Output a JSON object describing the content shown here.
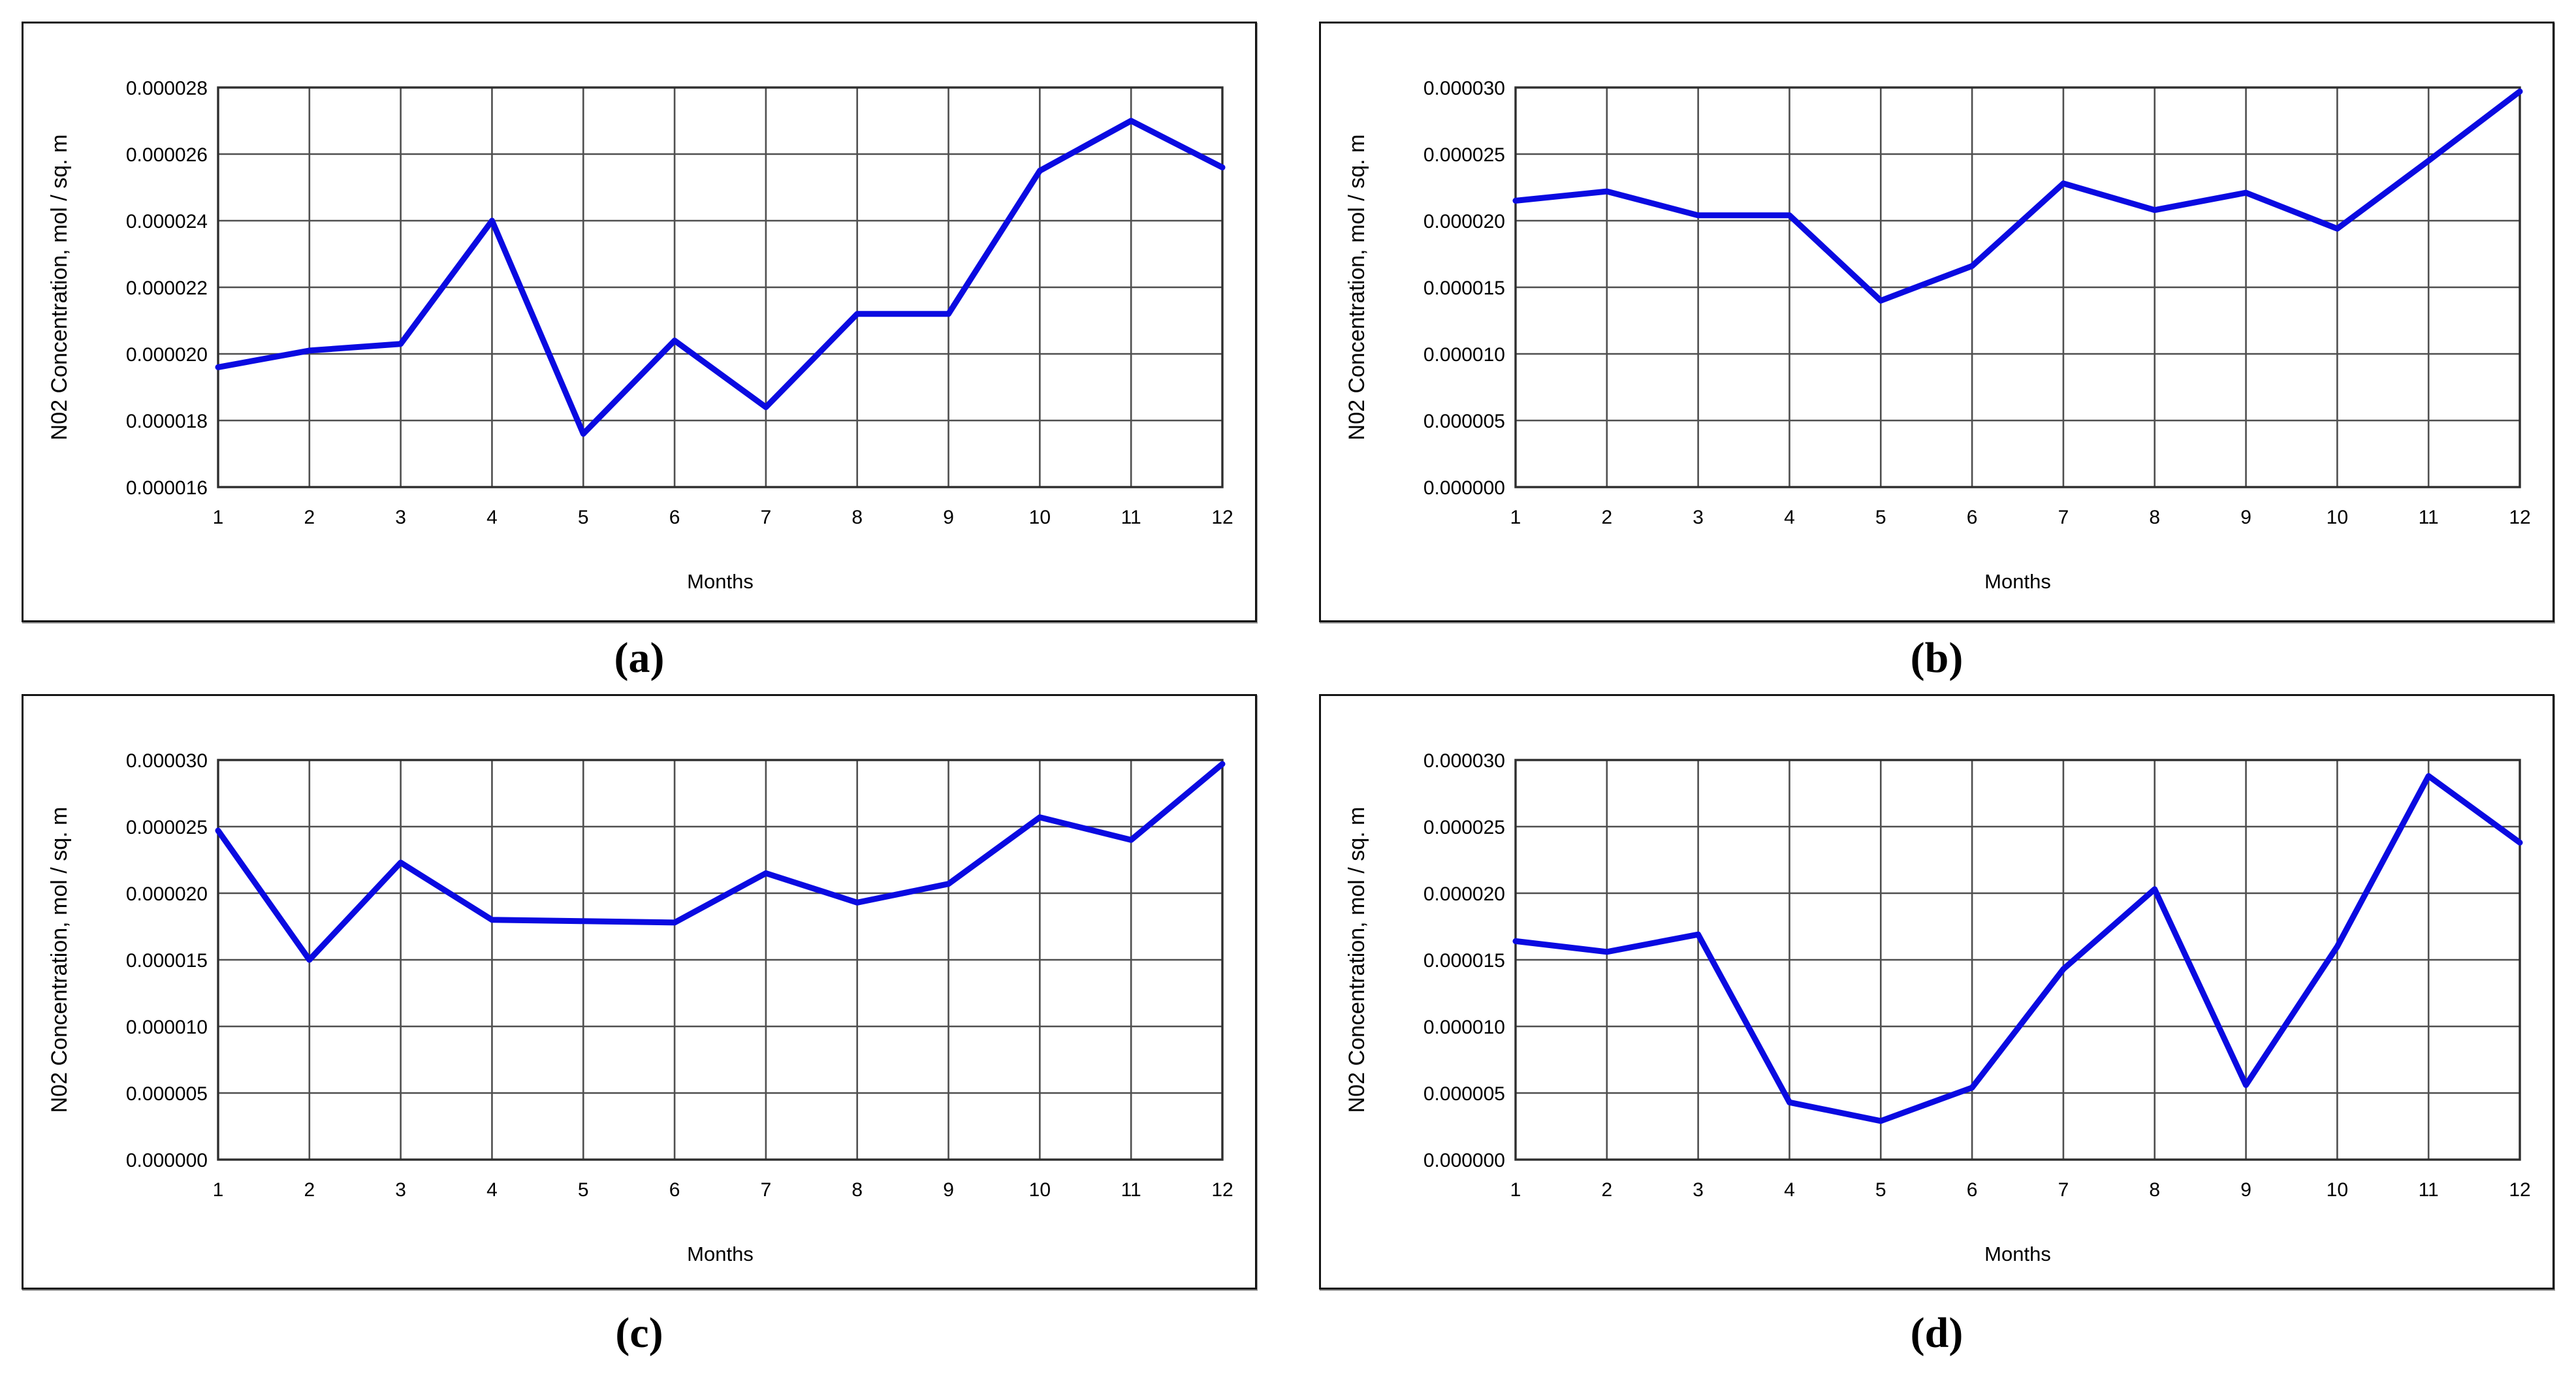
{
  "style": {
    "line_color": "#0a0ae1",
    "grid_color": "#4f4f4f",
    "plot_border_color": "#2e2e2e",
    "text_color": "#000000",
    "background": "#ffffff"
  },
  "chart_data": [
    {
      "id": "a",
      "type": "line",
      "caption": "(a)",
      "title": "",
      "ylabel": "N02 Concentration, mol / sq. m",
      "xlabel": "Months",
      "x": [
        1,
        2,
        3,
        4,
        5,
        6,
        7,
        8,
        9,
        10,
        11,
        12
      ],
      "values": [
        1.96e-05,
        2.01e-05,
        2.03e-05,
        2.4e-05,
        1.76e-05,
        2.04e-05,
        1.84e-05,
        2.12e-05,
        2.12e-05,
        2.55e-05,
        2.7e-05,
        2.56e-05
      ],
      "ylim": [
        1.6e-05,
        2.8e-05
      ],
      "ystep": 2e-06,
      "ytick_decimals": 6,
      "grid": "on",
      "legend": "none"
    },
    {
      "id": "b",
      "type": "line",
      "caption": "(b)",
      "title": "",
      "ylabel": "N02 Concentration, mol / sq. m",
      "xlabel": "Months",
      "x": [
        1,
        2,
        3,
        4,
        5,
        6,
        7,
        8,
        9,
        10,
        11,
        12
      ],
      "values": [
        2.15e-05,
        2.22e-05,
        2.04e-05,
        2.04e-05,
        1.4e-05,
        1.66e-05,
        2.28e-05,
        2.08e-05,
        2.21e-05,
        1.94e-05,
        2.45e-05,
        2.97e-05
      ],
      "ylim": [
        0.0,
        3e-05
      ],
      "ystep": 5e-06,
      "ytick_decimals": 6,
      "grid": "on",
      "legend": "none"
    },
    {
      "id": "c",
      "type": "line",
      "caption": "(c)",
      "title": "",
      "ylabel": "N02 Concentration, mol / sq. m",
      "xlabel": "Months",
      "x": [
        1,
        2,
        3,
        4,
        5,
        6,
        7,
        8,
        9,
        10,
        11,
        12
      ],
      "values": [
        2.47e-05,
        1.5e-05,
        2.23e-05,
        1.8e-05,
        1.79e-05,
        1.78e-05,
        2.15e-05,
        1.93e-05,
        2.07e-05,
        2.57e-05,
        2.4e-05,
        2.97e-05
      ],
      "ylim": [
        0.0,
        3e-05
      ],
      "ystep": 5e-06,
      "ytick_decimals": 6,
      "grid": "on",
      "legend": "none"
    },
    {
      "id": "d",
      "type": "line",
      "caption": "(d)",
      "title": "",
      "ylabel": "N02 Concentration, mol / sq. m",
      "xlabel": "Months",
      "x": [
        1,
        2,
        3,
        4,
        5,
        6,
        7,
        8,
        9,
        10,
        11,
        12
      ],
      "values": [
        1.64e-05,
        1.56e-05,
        1.69e-05,
        4.3e-06,
        2.9e-06,
        5.4e-06,
        1.43e-05,
        2.03e-05,
        5.6e-06,
        1.6e-05,
        2.88e-05,
        2.38e-05
      ],
      "ylim": [
        0.0,
        3e-05
      ],
      "ystep": 5e-06,
      "ytick_decimals": 6,
      "grid": "on",
      "legend": "none"
    }
  ]
}
